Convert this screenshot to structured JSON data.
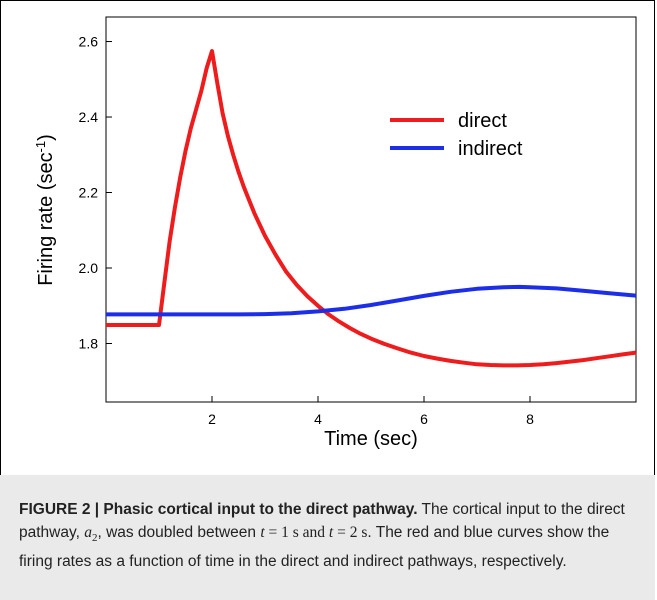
{
  "chart_data": {
    "type": "line",
    "xlabel": "Time (sec)",
    "ylabel": "Firing rate (sec",
    "ylabel_sup": "-1",
    "ylabel_close": ")",
    "xlim": [
      0,
      10
    ],
    "ylim": [
      1.645,
      2.665
    ],
    "xticks": [
      2,
      4,
      6,
      8
    ],
    "xtick_labels": [
      "2",
      "4",
      "6",
      "8"
    ],
    "yticks": [
      1.8,
      2.0,
      2.2,
      2.4,
      2.6
    ],
    "ytick_labels": [
      "1.8",
      "2.0",
      "2.2",
      "2.4",
      "2.6"
    ],
    "grid": false,
    "legend_position": "top-right",
    "series": [
      {
        "name": "direct",
        "color": "#ee1c1c",
        "x": [
          0,
          0.2,
          0.4,
          0.6,
          0.8,
          1.0,
          1.1,
          1.2,
          1.3,
          1.4,
          1.5,
          1.6,
          1.7,
          1.8,
          1.9,
          2.0,
          2.1,
          2.2,
          2.3,
          2.4,
          2.5,
          2.6,
          2.7,
          2.8,
          2.9,
          3.0,
          3.2,
          3.4,
          3.6,
          3.8,
          4.0,
          4.2,
          4.4,
          4.6,
          4.8,
          5.0,
          5.25,
          5.5,
          5.75,
          6.0,
          6.25,
          6.5,
          6.75,
          7.0,
          7.25,
          7.5,
          7.75,
          8.0,
          8.25,
          8.5,
          8.75,
          9.0,
          9.25,
          9.5,
          9.75,
          10.0
        ],
        "y": [
          1.849,
          1.849,
          1.849,
          1.849,
          1.849,
          1.849,
          1.96,
          2.07,
          2.16,
          2.24,
          2.31,
          2.37,
          2.42,
          2.47,
          2.53,
          2.575,
          2.49,
          2.41,
          2.35,
          2.3,
          2.255,
          2.215,
          2.18,
          2.145,
          2.115,
          2.085,
          2.035,
          1.99,
          1.955,
          1.925,
          1.9,
          1.877,
          1.858,
          1.841,
          1.826,
          1.813,
          1.799,
          1.787,
          1.776,
          1.767,
          1.76,
          1.754,
          1.749,
          1.745,
          1.743,
          1.742,
          1.742,
          1.743,
          1.745,
          1.748,
          1.752,
          1.756,
          1.761,
          1.766,
          1.771,
          1.776
        ]
      },
      {
        "name": "indirect",
        "color": "#1c2ee8",
        "x": [
          0,
          0.5,
          1.0,
          1.5,
          2.0,
          2.5,
          3.0,
          3.5,
          4.0,
          4.5,
          5.0,
          5.5,
          6.0,
          6.5,
          7.0,
          7.5,
          7.8,
          8.0,
          8.5,
          9.0,
          9.5,
          10.0
        ],
        "y": [
          1.877,
          1.877,
          1.877,
          1.877,
          1.877,
          1.877,
          1.878,
          1.88,
          1.885,
          1.892,
          1.902,
          1.914,
          1.926,
          1.937,
          1.945,
          1.949,
          1.95,
          1.949,
          1.946,
          1.94,
          1.933,
          1.927
        ]
      }
    ]
  },
  "caption": {
    "label": "FIGURE 2 | Phasic cortical input to the direct pathway.",
    "t1": " The cortical input to the direct pathway, ",
    "var_a": "a",
    "var_sub": "2",
    "t2": ", was doubled between ",
    "var_t1": "t",
    "eq1": " = 1 s and ",
    "var_t2": "t",
    "eq2": " = 2 s",
    "t3": ". The red and blue curves show the firing rates as a function of time in the direct and indirect pathways, respectively."
  }
}
